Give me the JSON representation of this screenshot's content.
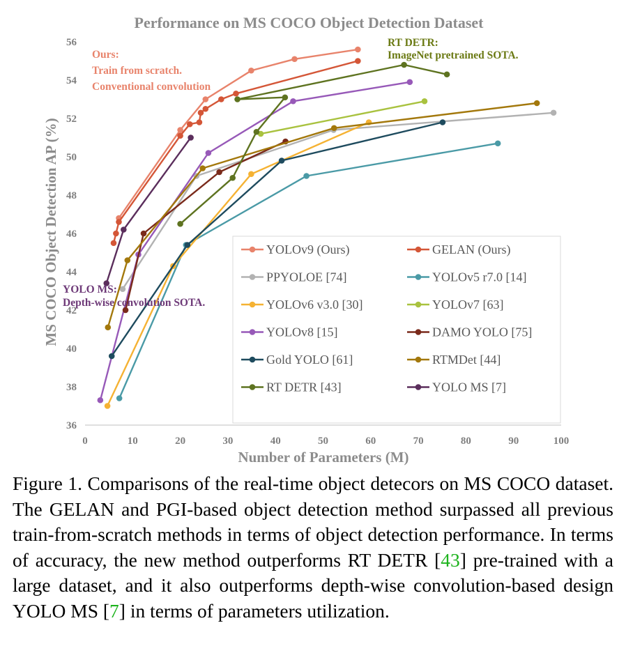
{
  "chart_data": {
    "type": "line",
    "title": "Performance on MS COCO Object Detection Dataset",
    "xlabel": "Number of Parameters (M)",
    "ylabel": "MS COCO Object Detection AP (%)",
    "xlim": [
      0,
      100
    ],
    "ylim": [
      36,
      56
    ],
    "xticks": [
      0,
      10,
      20,
      30,
      40,
      50,
      60,
      70,
      80,
      90,
      100
    ],
    "yticks": [
      36,
      38,
      40,
      42,
      44,
      46,
      48,
      50,
      52,
      54,
      56
    ],
    "grid": false,
    "legend_placement": "bottom-right",
    "series": [
      {
        "name": "YOLOv9 (Ours)",
        "color": "#e8836b",
        "points": [
          [
            7.1,
            46.8
          ],
          [
            20.0,
            51.4
          ],
          [
            25.3,
            53.0
          ],
          [
            34.9,
            54.5
          ],
          [
            44.0,
            55.1
          ],
          [
            57.3,
            55.6
          ]
        ]
      },
      {
        "name": "GELAN (Ours)",
        "color": "#d45637",
        "points": [
          [
            6.0,
            45.5
          ],
          [
            6.5,
            46.0
          ],
          [
            7.1,
            46.6
          ],
          [
            20.0,
            51.1
          ],
          [
            22.0,
            51.7
          ],
          [
            24.0,
            51.8
          ],
          [
            24.3,
            52.3
          ],
          [
            25.3,
            52.5
          ],
          [
            28.6,
            53.0
          ],
          [
            31.7,
            53.3
          ],
          [
            57.3,
            55.0
          ]
        ]
      },
      {
        "name": "PPYOLOE [74]",
        "color": "#b2b2b2",
        "points": [
          [
            7.9,
            43.1
          ],
          [
            23.4,
            49.0
          ],
          [
            52.2,
            51.4
          ],
          [
            98.4,
            52.3
          ]
        ]
      },
      {
        "name": "YOLOv5 r7.0 [14]",
        "color": "#4a9aa6",
        "points": [
          [
            7.2,
            37.4
          ],
          [
            21.2,
            45.4
          ],
          [
            46.5,
            49.0
          ],
          [
            86.7,
            50.7
          ]
        ]
      },
      {
        "name": "YOLOv6 v3.0 [30]",
        "color": "#f5b233",
        "points": [
          [
            4.7,
            37.0
          ],
          [
            18.5,
            44.3
          ],
          [
            34.9,
            49.1
          ],
          [
            59.6,
            51.8
          ]
        ]
      },
      {
        "name": "YOLOv7 [63]",
        "color": "#a9c23f",
        "points": [
          [
            36.9,
            51.2
          ],
          [
            71.3,
            52.9
          ]
        ]
      },
      {
        "name": "YOLOv8 [15]",
        "color": "#9759b8",
        "points": [
          [
            3.2,
            37.3
          ],
          [
            11.2,
            44.9
          ],
          [
            25.9,
            50.2
          ],
          [
            43.7,
            52.9
          ],
          [
            68.2,
            53.9
          ]
        ]
      },
      {
        "name": "DAMO YOLO [75]",
        "color": "#7a2a1b",
        "points": [
          [
            8.5,
            42.0
          ],
          [
            12.3,
            46.0
          ],
          [
            28.2,
            49.2
          ],
          [
            42.1,
            50.8
          ]
        ]
      },
      {
        "name": "Gold YOLO [61]",
        "color": "#1e4b5e",
        "points": [
          [
            5.6,
            39.6
          ],
          [
            21.5,
            45.4
          ],
          [
            41.3,
            49.8
          ],
          [
            75.1,
            51.8
          ]
        ]
      },
      {
        "name": "RTMDet [44]",
        "color": "#a3780c",
        "points": [
          [
            4.8,
            41.1
          ],
          [
            8.9,
            44.6
          ],
          [
            24.7,
            49.4
          ],
          [
            52.3,
            51.5
          ],
          [
            94.9,
            52.8
          ]
        ]
      },
      {
        "name": "RT DETR [43]",
        "color": "#5e7320",
        "points": [
          [
            20.0,
            46.5
          ],
          [
            31.0,
            48.9
          ],
          [
            36.0,
            51.3
          ],
          [
            42.0,
            53.1
          ],
          [
            32.0,
            53.0
          ],
          [
            67.0,
            54.8
          ],
          [
            76.0,
            54.3
          ]
        ]
      },
      {
        "name": "YOLO MS [7]",
        "color": "#5b2e5c",
        "points": [
          [
            4.5,
            43.4
          ],
          [
            8.1,
            46.2
          ],
          [
            22.2,
            51.0
          ]
        ]
      }
    ],
    "annotations": [
      {
        "lines": [
          "Ours:",
          "Train from scratch.",
          "Conventional convolution"
        ],
        "color": "#e8836b"
      },
      {
        "lines": [
          "RT DETR:",
          "ImageNet pretrained SOTA."
        ],
        "color": "#6b7a14"
      },
      {
        "lines": [
          "YOLO MS:",
          "Depth-wise convolution SOTA."
        ],
        "color": "#6e3a78"
      }
    ]
  },
  "caption": {
    "text_1": "Figure 1.  Comparisons of the real-time object detecors on MS COCO dataset.  The GELAN and PGI-based object detection method surpassed all previous train-from-scratch methods in terms of object detection performance.  In terms of accuracy, the new method outperforms RT DETR [",
    "ref_1": "43",
    "text_2": "] pre-trained with a large dataset, and it also outperforms depth-wise convolution-based design YOLO MS [",
    "ref_2": "7",
    "text_3": "] in terms of parameters utilization."
  }
}
